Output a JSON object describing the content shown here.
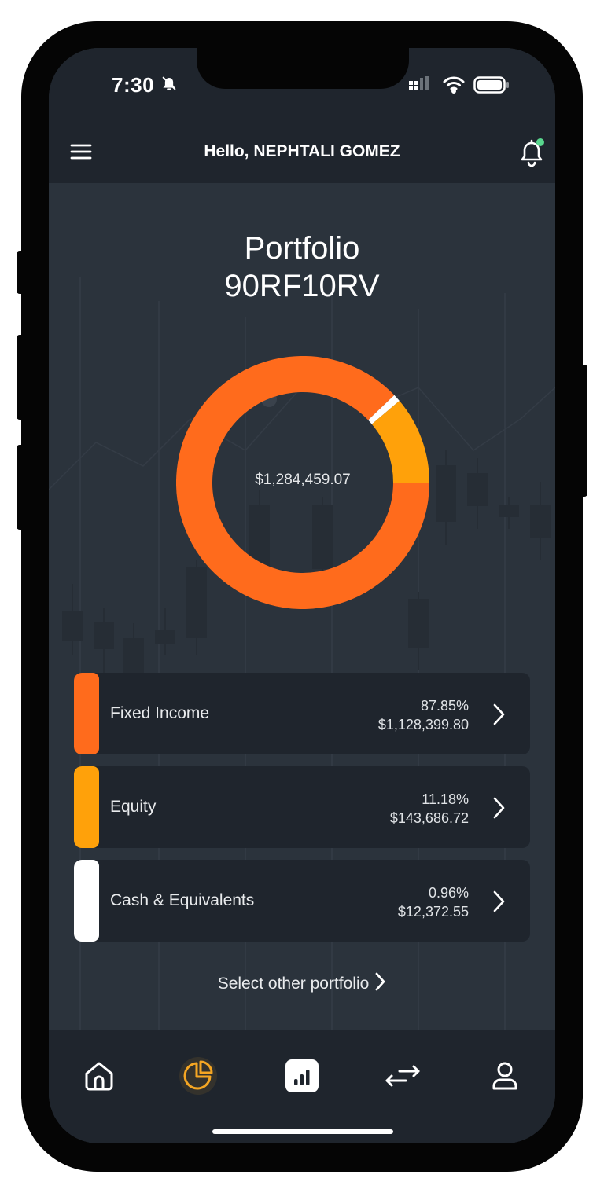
{
  "status_bar": {
    "time": "7:30"
  },
  "header": {
    "greeting": "Hello, NEPHTALI GOMEZ"
  },
  "portfolio": {
    "title": "Portfolio",
    "code": "90RF10RV",
    "total": "$1,284,459.07"
  },
  "allocations": [
    {
      "name": "Fixed Income",
      "percent": "87.85%",
      "amount": "$1,128,399.80",
      "color": "#ff6b1c",
      "share": 87.85
    },
    {
      "name": "Equity",
      "percent": "11.18%",
      "amount": "$143,686.72",
      "color": "#ffa10a",
      "share": 11.18
    },
    {
      "name": "Cash & Equivalents",
      "percent": "0.96%",
      "amount": "$12,372.55",
      "color": "#ffffff",
      "share": 0.96
    }
  ],
  "select_other": "Select other portfolio",
  "tabs": [
    {
      "icon": "home-icon",
      "active": false
    },
    {
      "icon": "pie-chart-icon",
      "active": true
    },
    {
      "icon": "bar-chart-icon",
      "active": false
    },
    {
      "icon": "transfer-icon",
      "active": false
    },
    {
      "icon": "user-icon",
      "active": false
    }
  ],
  "colors": {
    "accent": "#ff6b1c",
    "active_tab": "#f5a623",
    "background": "#2b333c",
    "surface": "#1f252d"
  }
}
